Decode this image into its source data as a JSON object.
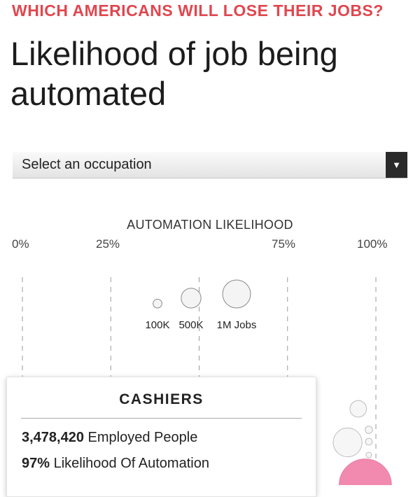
{
  "header": {
    "kicker": "WHICH AMERICANS WILL LOSE THEIR JOBS?",
    "title": "Likelihood of job being automated"
  },
  "select": {
    "placeholder": "Select an occupation",
    "arrow": "▼"
  },
  "colors": {
    "kicker": "#e0474f",
    "highlight": "#f28ab0",
    "bubble_stroke": "#bdbdbd"
  },
  "chart_data": {
    "type": "scatter",
    "title": "AUTOMATION LIKELIHOOD",
    "x_ticks": [
      "0%",
      "25%",
      "75%",
      "100%"
    ],
    "xlim": [
      0,
      100
    ],
    "size_legend": [
      {
        "label": "100K",
        "jobs": 100000
      },
      {
        "label": "500K",
        "jobs": 500000
      },
      {
        "label": "1M Jobs",
        "jobs": 1000000
      }
    ],
    "highlighted": {
      "occupation": "CASHIERS",
      "likelihood": 97,
      "employed": 3478420
    },
    "bubbles": [
      {
        "likelihood": 95,
        "jobs": 350000
      },
      {
        "likelihood": 98,
        "jobs": 70000
      },
      {
        "likelihood": 98,
        "jobs": 60000
      },
      {
        "likelihood": 98,
        "jobs": 40000
      },
      {
        "likelihood": 92,
        "jobs": 1060000
      },
      {
        "likelihood": 92,
        "jobs": 120000
      },
      {
        "likelihood": 97,
        "jobs": 3478420
      }
    ]
  },
  "tooltip": {
    "title": "CASHIERS",
    "employed_value": "3,478,420",
    "employed_label": "Employed People",
    "likelihood_value": "97%",
    "likelihood_label": "Likelihood Of Automation"
  }
}
